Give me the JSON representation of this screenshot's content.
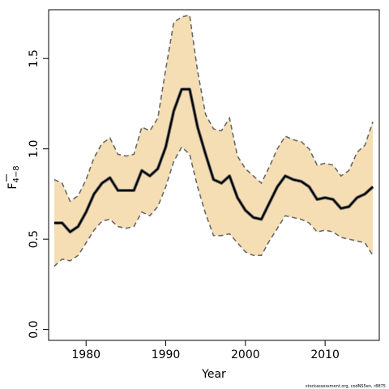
{
  "chart_data": {
    "type": "line",
    "xlabel": "Year",
    "ylabel": "F",
    "ylabel_subscript": "4−8",
    "xlim": [
      1975.3,
      2016.8
    ],
    "ylim": [
      -0.06,
      1.77
    ],
    "x_ticks": [
      1980,
      1990,
      2000,
      2010
    ],
    "y_ticks": [
      0.0,
      0.5,
      1.0,
      1.5
    ],
    "x_tick_labels": [
      "1980",
      "1990",
      "2000",
      "2010"
    ],
    "y_tick_labels": [
      "0.0",
      "0.5",
      "1.0",
      "1.5"
    ],
    "grid": false,
    "legend": "none",
    "colors": {
      "band": "#f5deb3",
      "estimate": "#000000",
      "bounds": "#696969"
    },
    "x": [
      1976,
      1977,
      1978,
      1979,
      1980,
      1981,
      1982,
      1983,
      1984,
      1985,
      1986,
      1987,
      1988,
      1989,
      1990,
      1991,
      1992,
      1993,
      1994,
      1995,
      1996,
      1997,
      1998,
      1999,
      2000,
      2001,
      2002,
      2003,
      2004,
      2005,
      2006,
      2007,
      2008,
      2009,
      2010,
      2011,
      2012,
      2013,
      2014,
      2015,
      2016
    ],
    "series": [
      {
        "role": "upper",
        "values": [
          0.83,
          0.81,
          0.71,
          0.74,
          0.83,
          0.95,
          1.03,
          1.06,
          0.97,
          0.96,
          0.97,
          1.12,
          1.1,
          1.17,
          1.44,
          1.7,
          1.73,
          1.74,
          1.43,
          1.19,
          1.11,
          1.1,
          1.17,
          0.96,
          0.89,
          0.85,
          0.81,
          0.9,
          1.0,
          1.07,
          1.05,
          1.04,
          1.0,
          0.91,
          0.92,
          0.91,
          0.85,
          0.88,
          0.98,
          1.02,
          1.15
        ]
      },
      {
        "role": "estimate",
        "values": [
          0.59,
          0.59,
          0.54,
          0.57,
          0.65,
          0.75,
          0.81,
          0.84,
          0.77,
          0.77,
          0.77,
          0.88,
          0.85,
          0.89,
          1.01,
          1.21,
          1.33,
          1.33,
          1.12,
          0.97,
          0.83,
          0.81,
          0.85,
          0.73,
          0.66,
          0.62,
          0.61,
          0.7,
          0.79,
          0.85,
          0.83,
          0.82,
          0.79,
          0.72,
          0.73,
          0.72,
          0.67,
          0.68,
          0.73,
          0.75,
          0.79
        ]
      },
      {
        "role": "lower",
        "values": [
          0.35,
          0.39,
          0.38,
          0.41,
          0.48,
          0.55,
          0.6,
          0.61,
          0.57,
          0.56,
          0.57,
          0.65,
          0.63,
          0.68,
          0.79,
          0.93,
          1.01,
          0.97,
          0.79,
          0.64,
          0.52,
          0.52,
          0.53,
          0.48,
          0.43,
          0.41,
          0.41,
          0.49,
          0.56,
          0.63,
          0.62,
          0.61,
          0.59,
          0.54,
          0.55,
          0.54,
          0.51,
          0.5,
          0.49,
          0.48,
          0.41
        ]
      }
    ]
  },
  "credit_text": "stockassessment.org, codNS5en, r8875"
}
